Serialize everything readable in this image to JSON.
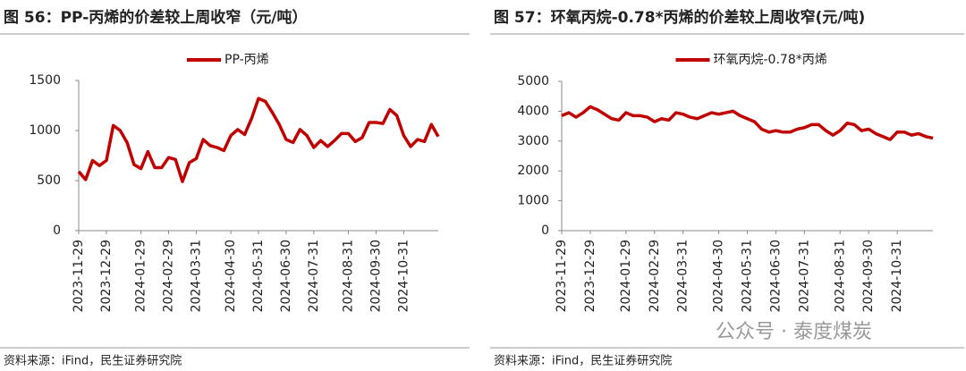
{
  "chart_data": [
    {
      "type": "line",
      "title": "图 56：PP-丙烯的价差较上周收窄（元/吨）",
      "categories": [
        "2023-11-29",
        null,
        null,
        null,
        "2023-12-29",
        null,
        null,
        null,
        null,
        "2024-01-29",
        null,
        null,
        null,
        "2024-02-29",
        null,
        null,
        null,
        "2024-03-31",
        null,
        null,
        null,
        null,
        "2024-04-30",
        null,
        null,
        null,
        "2024-05-31",
        null,
        null,
        null,
        "2024-06-30",
        null,
        null,
        null,
        "2024-07-31",
        null,
        null,
        null,
        null,
        "2024-08-31",
        null,
        null,
        null,
        "2024-09-30",
        null,
        null,
        null,
        "2024-10-31",
        null,
        null,
        null,
        null,
        null
      ],
      "series": [
        {
          "name": "PP-丙烯",
          "color": "#c00000",
          "values": [
            590,
            510,
            700,
            650,
            700,
            1050,
            1000,
            880,
            660,
            620,
            790,
            630,
            630,
            730,
            710,
            490,
            680,
            720,
            910,
            850,
            830,
            800,
            950,
            1010,
            960,
            1120,
            1320,
            1290,
            1180,
            1060,
            910,
            880,
            1010,
            950,
            830,
            900,
            840,
            900,
            970,
            970,
            890,
            930,
            1080,
            1080,
            1070,
            1210,
            1150,
            950,
            840,
            910,
            890,
            1060,
            940
          ]
        }
      ],
      "ylim": [
        0,
        1500
      ],
      "yticks": [
        0,
        500,
        1000,
        1500
      ],
      "grid": false,
      "legend": "top",
      "source": "资料来源：iFind，民生证券研究院"
    },
    {
      "type": "line",
      "title": "图 57：环氧丙烷-0.78*丙烯的价差较上周收窄(元/吨)",
      "categories": [
        "2023-11-29",
        null,
        null,
        null,
        "2023-12-29",
        null,
        null,
        null,
        null,
        "2024-01-29",
        null,
        null,
        null,
        "2024-02-29",
        null,
        null,
        null,
        "2024-03-31",
        null,
        null,
        null,
        null,
        "2024-04-30",
        null,
        null,
        null,
        "2024-05-31",
        null,
        null,
        null,
        "2024-06-30",
        null,
        null,
        null,
        "2024-07-31",
        null,
        null,
        null,
        null,
        "2024-08-31",
        null,
        null,
        null,
        "2024-09-30",
        null,
        null,
        null,
        "2024-10-31",
        null,
        null,
        null,
        null,
        null
      ],
      "series": [
        {
          "name": "环氧丙烷-0.78*丙烯",
          "color": "#c00000",
          "values": [
            3850,
            3950,
            3800,
            3950,
            4150,
            4050,
            3900,
            3750,
            3700,
            3950,
            3850,
            3850,
            3800,
            3650,
            3750,
            3700,
            3950,
            3900,
            3800,
            3750,
            3850,
            3950,
            3900,
            3950,
            4000,
            3850,
            3750,
            3650,
            3400,
            3300,
            3350,
            3300,
            3300,
            3400,
            3450,
            3550,
            3550,
            3350,
            3200,
            3350,
            3600,
            3550,
            3350,
            3400,
            3250,
            3150,
            3050,
            3300,
            3300,
            3200,
            3250,
            3150,
            3100
          ]
        }
      ],
      "ylim": [
        0,
        5000
      ],
      "yticks": [
        0,
        1000,
        2000,
        3000,
        4000,
        5000
      ],
      "grid": false,
      "legend": "top",
      "source": "资料来源：iFind，民生证券研究院"
    }
  ],
  "watermark": "公众号 · 泰度煤炭"
}
